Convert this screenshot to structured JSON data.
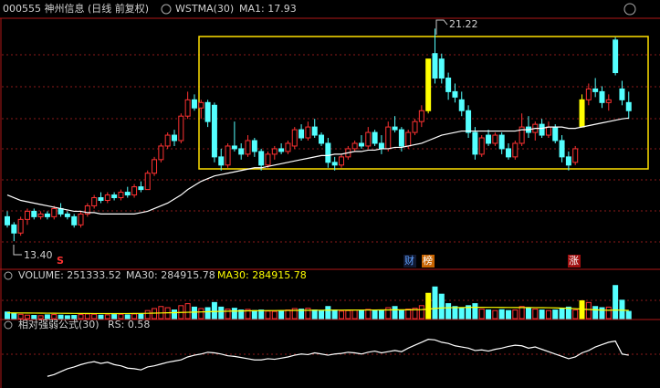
{
  "chart_data": {
    "type": "candlestick",
    "title": "000555 神州信息 (日线 前复权)",
    "indicator": "WSTMA(30)",
    "ma_name": "MA1:",
    "open": [
      14.3,
      14.0,
      13.7,
      14.2,
      14.5,
      14.3,
      14.4,
      14.3,
      14.6,
      14.4,
      14.3,
      14.0,
      14.4,
      14.7,
      15.0,
      14.9,
      15.1,
      15.0,
      15.2,
      15.1,
      15.4,
      15.3,
      15.9,
      16.4,
      16.9,
      17.3,
      17.1,
      18.0,
      18.6,
      18.3,
      18.5,
      18.4,
      16.5,
      16.2,
      16.9,
      16.8,
      16.6,
      17.1,
      16.7,
      16.2,
      16.6,
      16.8,
      16.7,
      16.9,
      17.5,
      17.2,
      17.6,
      17.3,
      17.0,
      16.3,
      16.2,
      16.5,
      16.8,
      17.0,
      16.9,
      17.4,
      17.0,
      16.8,
      17.6,
      17.5,
      16.9,
      17.4,
      17.8,
      18.2,
      20.3,
      20.1,
      19.4,
      18.9,
      18.6,
      18.2,
      17.4,
      16.6,
      17.3,
      17.0,
      17.3,
      16.8,
      16.5,
      17.0,
      17.6,
      17.4,
      17.7,
      17.3,
      17.6,
      17.1,
      16.5,
      16.3,
      17.6,
      18.6,
      19.0,
      18.9,
      18.5,
      20.8,
      19.0,
      18.5
    ],
    "high": [
      14.5,
      14.1,
      14.3,
      14.6,
      14.6,
      14.5,
      14.5,
      14.7,
      14.8,
      14.5,
      14.4,
      14.5,
      14.8,
      15.1,
      15.2,
      15.2,
      15.2,
      15.3,
      15.4,
      15.5,
      15.6,
      16.0,
      16.5,
      17.0,
      17.4,
      17.5,
      18.1,
      18.9,
      18.8,
      18.6,
      18.6,
      18.5,
      16.8,
      17.0,
      17.8,
      17.0,
      17.3,
      17.2,
      16.8,
      16.7,
      16.9,
      17.0,
      17.1,
      17.6,
      17.7,
      17.8,
      17.9,
      17.4,
      17.2,
      16.5,
      16.6,
      16.9,
      17.1,
      17.3,
      17.6,
      17.5,
      17.3,
      17.8,
      18.0,
      17.6,
      17.5,
      17.9,
      18.4,
      20.1,
      21.22,
      20.3,
      19.6,
      19.2,
      18.9,
      18.4,
      17.6,
      17.3,
      17.5,
      17.4,
      17.4,
      17.0,
      17.1,
      18.1,
      18.0,
      17.8,
      17.9,
      17.8,
      17.7,
      17.3,
      16.7,
      16.9,
      18.8,
      19.2,
      19.4,
      19.1,
      18.8,
      20.9,
      19.3,
      18.9
    ],
    "low": [
      13.9,
      13.4,
      13.6,
      14.0,
      14.2,
      14.2,
      14.2,
      14.2,
      14.3,
      14.2,
      13.9,
      13.9,
      14.3,
      14.6,
      14.8,
      14.8,
      14.9,
      14.9,
      15.0,
      15.0,
      15.2,
      15.3,
      15.8,
      16.3,
      16.8,
      16.9,
      17.0,
      17.9,
      18.2,
      17.9,
      17.6,
      16.3,
      16.0,
      16.1,
      16.7,
      16.4,
      16.5,
      16.5,
      16.0,
      16.1,
      16.4,
      16.6,
      16.6,
      16.8,
      17.1,
      17.1,
      17.2,
      16.9,
      16.1,
      16.0,
      16.1,
      16.4,
      16.7,
      16.8,
      16.8,
      16.9,
      16.6,
      16.7,
      17.4,
      16.7,
      16.8,
      17.3,
      17.6,
      18.1,
      19.2,
      19.2,
      18.6,
      18.5,
      18.0,
      17.2,
      16.4,
      16.5,
      16.9,
      16.9,
      16.6,
      16.4,
      16.4,
      16.9,
      17.2,
      17.1,
      17.2,
      17.2,
      17.0,
      16.3,
      16.0,
      16.2,
      17.6,
      18.4,
      18.7,
      18.3,
      18.2,
      19.5,
      18.4,
      17.9
    ],
    "close": [
      14.0,
      13.7,
      14.2,
      14.5,
      14.3,
      14.4,
      14.3,
      14.6,
      14.4,
      14.3,
      14.0,
      14.4,
      14.7,
      15.0,
      14.9,
      15.1,
      15.0,
      15.2,
      15.1,
      15.4,
      15.3,
      15.9,
      16.4,
      16.9,
      17.3,
      17.1,
      18.0,
      18.6,
      18.3,
      18.5,
      17.8,
      16.5,
      16.2,
      16.9,
      16.8,
      16.6,
      17.1,
      16.7,
      16.2,
      16.6,
      16.8,
      16.7,
      17.0,
      17.5,
      17.2,
      17.6,
      17.3,
      17.0,
      16.3,
      16.2,
      16.5,
      16.8,
      17.0,
      16.9,
      17.4,
      17.0,
      16.8,
      17.6,
      17.5,
      16.9,
      17.4,
      17.8,
      18.2,
      20.1,
      19.4,
      19.4,
      18.9,
      18.7,
      18.2,
      17.4,
      16.6,
      17.2,
      17.0,
      17.3,
      16.8,
      16.5,
      17.0,
      17.6,
      17.4,
      17.7,
      17.3,
      17.6,
      17.1,
      16.5,
      16.2,
      16.8,
      18.6,
      19.0,
      18.9,
      18.5,
      18.6,
      19.6,
      18.6,
      18.2
    ],
    "ma": [
      15.1,
      15.0,
      14.9,
      14.85,
      14.8,
      14.75,
      14.7,
      14.65,
      14.6,
      14.55,
      14.5,
      14.5,
      14.45,
      14.45,
      14.4,
      14.4,
      14.4,
      14.4,
      14.4,
      14.4,
      14.45,
      14.5,
      14.6,
      14.7,
      14.8,
      14.95,
      15.1,
      15.3,
      15.45,
      15.6,
      15.7,
      15.8,
      15.85,
      15.9,
      15.95,
      16.0,
      16.05,
      16.1,
      16.1,
      16.15,
      16.2,
      16.25,
      16.3,
      16.35,
      16.4,
      16.45,
      16.5,
      16.55,
      16.55,
      16.6,
      16.6,
      16.65,
      16.7,
      16.7,
      16.75,
      16.75,
      16.8,
      16.8,
      16.85,
      16.85,
      16.9,
      16.95,
      17.0,
      17.1,
      17.2,
      17.3,
      17.35,
      17.4,
      17.45,
      17.45,
      17.45,
      17.45,
      17.45,
      17.45,
      17.45,
      17.45,
      17.45,
      17.5,
      17.5,
      17.55,
      17.55,
      17.6,
      17.6,
      17.6,
      17.55,
      17.55,
      17.6,
      17.65,
      17.7,
      17.75,
      17.8,
      17.85,
      17.9,
      17.93
    ],
    "up_color": "#ff3232",
    "down_color": "#54ffff",
    "ma_color": "#ffffff",
    "highlight_color": "#ffff00",
    "highlight": [
      63,
      86
    ],
    "ylim": [
      12.6,
      21.6
    ],
    "max_label": "21.22",
    "min_label": "13.40",
    "markers": [
      "S",
      "财",
      "榜",
      "涨"
    ],
    "volume_name": "VOLUME:",
    "vol_ma_name": "MA30:",
    "volume": [
      230000,
      180000,
      150000,
      120000,
      110000,
      100000,
      130000,
      140000,
      120000,
      100000,
      110000,
      140000,
      160000,
      150000,
      120000,
      130000,
      140000,
      150000,
      130000,
      160000,
      170000,
      280000,
      350000,
      420000,
      380000,
      300000,
      450000,
      520000,
      400000,
      350000,
      380000,
      560000,
      400000,
      330000,
      360000,
      300000,
      320000,
      280000,
      300000,
      260000,
      250000,
      270000,
      300000,
      350000,
      330000,
      360000,
      300000,
      280000,
      420000,
      300000,
      260000,
      280000,
      300000,
      270000,
      320000,
      290000,
      300000,
      380000,
      420000,
      300000,
      330000,
      360000,
      450000,
      880000,
      1100000,
      850000,
      520000,
      420000,
      380000,
      450000,
      520000,
      330000,
      300000,
      280000,
      310000,
      280000,
      300000,
      420000,
      380000,
      330000,
      300000,
      280000,
      300000,
      360000,
      400000,
      300000,
      620000,
      560000,
      420000,
      380000,
      400000,
      1150000,
      640000,
      251333.52
    ],
    "vol_ma": [
      200000,
      198000,
      196000,
      194000,
      192000,
      190000,
      188000,
      186000,
      184000,
      182000,
      180000,
      179000,
      178000,
      177000,
      176000,
      175000,
      175000,
      176000,
      177000,
      178000,
      180000,
      185000,
      190000,
      196000,
      202000,
      207000,
      213000,
      220000,
      226000,
      232000,
      238000,
      246000,
      252000,
      257000,
      262000,
      266000,
      270000,
      273000,
      276000,
      278000,
      280000,
      282000,
      284000,
      286000,
      288000,
      290000,
      291000,
      292000,
      294000,
      295000,
      296000,
      297000,
      298000,
      299000,
      300000,
      300000,
      301000,
      302000,
      304000,
      305000,
      306000,
      308000,
      312000,
      330000,
      352000,
      370000,
      378000,
      382000,
      385000,
      388000,
      392000,
      392000,
      391000,
      390000,
      389000,
      387000,
      385000,
      385000,
      384000,
      382000,
      380000,
      378000,
      372000,
      365000,
      358000,
      345000,
      330000,
      318000,
      306000,
      296000,
      290000,
      300000,
      292000,
      284915.78
    ],
    "vol_ma_color": "#ffff00",
    "vol_ylim": [
      0,
      1300000
    ],
    "rs_name": "相对强弱公式(30)",
    "rs_label": "RS:",
    "rs": [
      null,
      null,
      null,
      null,
      null,
      null,
      0.22,
      0.25,
      0.3,
      0.35,
      0.38,
      0.42,
      0.45,
      0.47,
      0.44,
      0.46,
      0.42,
      0.4,
      0.36,
      0.35,
      0.33,
      0.38,
      0.4,
      0.43,
      0.46,
      0.48,
      0.5,
      0.55,
      0.58,
      0.6,
      0.63,
      0.62,
      0.6,
      0.57,
      0.56,
      0.54,
      0.52,
      0.5,
      0.5,
      0.52,
      0.51,
      0.53,
      0.55,
      0.58,
      0.6,
      0.59,
      0.62,
      0.6,
      0.58,
      0.6,
      0.61,
      0.63,
      0.62,
      0.6,
      0.63,
      0.65,
      0.62,
      0.64,
      0.66,
      0.64,
      0.7,
      0.75,
      0.8,
      0.85,
      0.84,
      0.8,
      0.78,
      0.74,
      0.72,
      0.7,
      0.66,
      0.67,
      0.65,
      0.68,
      0.7,
      0.73,
      0.75,
      0.74,
      0.7,
      0.72,
      0.68,
      0.64,
      0.6,
      0.56,
      0.52,
      0.55,
      0.62,
      0.66,
      0.72,
      0.76,
      0.8,
      0.82,
      0.6,
      0.58
    ],
    "rs_color": "#ffffff",
    "rs_ylim": [
      0.1,
      1.0
    ]
  }
}
